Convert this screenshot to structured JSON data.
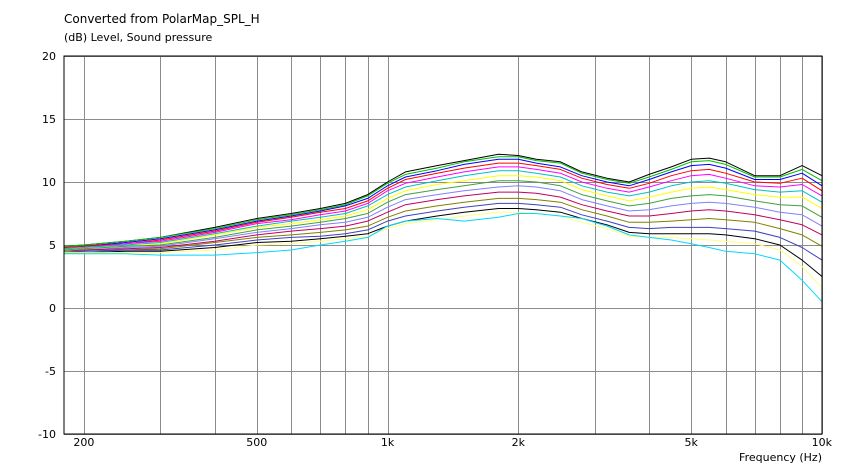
{
  "chart_data": {
    "type": "line",
    "title": "Converted from PolarMap_SPL_H",
    "subtitle": "(dB)  Level, Sound pressure",
    "xlabel": "Frequency  (Hz)",
    "ylabel": "",
    "xscale": "log",
    "xlim": [
      180,
      10000
    ],
    "ylim": [
      -10,
      20
    ],
    "grid": true,
    "y_ticks": [
      {
        "value": -10,
        "label": "-10"
      },
      {
        "value": -5,
        "label": "-5"
      },
      {
        "value": 0,
        "label": "0"
      },
      {
        "value": 5,
        "label": "5"
      },
      {
        "value": 10,
        "label": "10"
      },
      {
        "value": 15,
        "label": "15"
      },
      {
        "value": 20,
        "label": "20"
      }
    ],
    "x_ticks": [
      {
        "value": 200,
        "label": "200"
      },
      {
        "value": 500,
        "label": "500"
      },
      {
        "value": 1000,
        "label": "1k"
      },
      {
        "value": 2000,
        "label": "2k"
      },
      {
        "value": 5000,
        "label": "5k"
      },
      {
        "value": 10000,
        "label": "10k"
      }
    ],
    "x_gridlines": [
      200,
      300,
      400,
      500,
      600,
      700,
      800,
      900,
      1000,
      2000,
      3000,
      4000,
      5000,
      6000,
      7000,
      8000,
      9000,
      10000
    ],
    "x": [
      180,
      200,
      250,
      300,
      400,
      500,
      600,
      700,
      800,
      900,
      1000,
      1100,
      1300,
      1500,
      1800,
      2000,
      2200,
      2500,
      2800,
      3200,
      3600,
      4000,
      4500,
      5000,
      5500,
      6000,
      7000,
      8000,
      9000,
      10000
    ],
    "series": [
      {
        "color": "#000000",
        "values": [
          4.9,
          5.0,
          5.3,
          5.6,
          6.4,
          7.1,
          7.5,
          7.9,
          8.3,
          9.0,
          10.0,
          10.8,
          11.3,
          11.7,
          12.2,
          12.1,
          11.8,
          11.6,
          10.8,
          10.3,
          10.0,
          10.6,
          11.2,
          11.8,
          11.9,
          11.6,
          10.5,
          10.5,
          11.3,
          10.5
        ]
      },
      {
        "color": "#00c000",
        "values": [
          4.9,
          5.0,
          5.3,
          5.6,
          6.3,
          7.0,
          7.4,
          7.8,
          8.2,
          8.9,
          9.9,
          10.6,
          11.1,
          11.6,
          12.0,
          12.0,
          11.7,
          11.5,
          10.7,
          10.2,
          9.9,
          10.4,
          11.0,
          11.6,
          11.7,
          11.4,
          10.4,
          10.4,
          11.0,
          10.1
        ]
      },
      {
        "color": "#0000ff",
        "values": [
          4.8,
          4.9,
          5.2,
          5.5,
          6.2,
          6.9,
          7.3,
          7.7,
          8.1,
          8.7,
          9.7,
          10.4,
          10.9,
          11.4,
          11.8,
          11.8,
          11.5,
          11.2,
          10.5,
          10.0,
          9.7,
          10.2,
          10.8,
          11.3,
          11.4,
          11.1,
          10.2,
          10.2,
          10.7,
          9.7
        ]
      },
      {
        "color": "#ff0000",
        "values": [
          4.8,
          4.9,
          5.1,
          5.4,
          6.1,
          6.8,
          7.2,
          7.6,
          7.9,
          8.5,
          9.5,
          10.2,
          10.7,
          11.1,
          11.5,
          11.5,
          11.3,
          11.0,
          10.3,
          9.8,
          9.5,
          9.9,
          10.5,
          10.9,
          11.0,
          10.7,
          10.0,
          9.9,
          10.3,
          9.3
        ]
      },
      {
        "color": "#ff00ff",
        "values": [
          4.7,
          4.8,
          5.1,
          5.3,
          6.0,
          6.7,
          7.0,
          7.4,
          7.7,
          8.3,
          9.3,
          9.9,
          10.4,
          10.8,
          11.2,
          11.2,
          11.0,
          10.7,
          10.0,
          9.5,
          9.2,
          9.6,
          10.1,
          10.5,
          10.6,
          10.3,
          9.7,
          9.6,
          9.8,
          8.9
        ]
      },
      {
        "color": "#00c0c0",
        "values": [
          4.7,
          4.8,
          5.0,
          5.2,
          5.9,
          6.5,
          6.9,
          7.2,
          7.5,
          8.1,
          9.0,
          9.6,
          10.1,
          10.5,
          10.9,
          10.9,
          10.7,
          10.4,
          9.7,
          9.2,
          8.9,
          9.2,
          9.7,
          10.0,
          10.1,
          9.9,
          9.4,
          9.2,
          9.3,
          8.4
        ]
      },
      {
        "color": "#ffff00",
        "values": [
          4.6,
          4.7,
          4.9,
          5.1,
          5.8,
          6.4,
          6.7,
          7.0,
          7.3,
          7.8,
          8.7,
          9.3,
          9.8,
          10.1,
          10.5,
          10.5,
          10.4,
          10.1,
          9.4,
          8.9,
          8.5,
          8.8,
          9.2,
          9.5,
          9.6,
          9.4,
          9.0,
          8.8,
          8.8,
          7.9
        ]
      },
      {
        "color": "#40a040",
        "values": [
          4.6,
          4.7,
          4.9,
          5.0,
          5.6,
          6.2,
          6.5,
          6.8,
          7.1,
          7.5,
          8.4,
          9.0,
          9.4,
          9.7,
          10.1,
          10.1,
          10.0,
          9.7,
          9.0,
          8.5,
          8.1,
          8.3,
          8.7,
          8.9,
          9.0,
          8.9,
          8.5,
          8.2,
          8.1,
          7.2
        ]
      },
      {
        "color": "#8080ff",
        "values": [
          4.5,
          4.6,
          4.8,
          4.9,
          5.5,
          6.0,
          6.3,
          6.6,
          6.8,
          7.2,
          8.0,
          8.6,
          9.0,
          9.3,
          9.6,
          9.7,
          9.6,
          9.3,
          8.6,
          8.1,
          7.7,
          7.8,
          8.1,
          8.3,
          8.4,
          8.3,
          8.0,
          7.6,
          7.4,
          6.5
        ]
      },
      {
        "color": "#c00060",
        "values": [
          4.5,
          4.6,
          4.7,
          4.8,
          5.3,
          5.8,
          6.1,
          6.3,
          6.5,
          6.9,
          7.6,
          8.2,
          8.6,
          8.9,
          9.2,
          9.2,
          9.1,
          8.8,
          8.2,
          7.7,
          7.3,
          7.3,
          7.5,
          7.7,
          7.8,
          7.7,
          7.4,
          7.0,
          6.6,
          5.8
        ]
      },
      {
        "color": "#808000",
        "values": [
          4.5,
          4.5,
          4.6,
          4.7,
          5.2,
          5.6,
          5.8,
          6.0,
          6.2,
          6.5,
          7.2,
          7.7,
          8.1,
          8.4,
          8.7,
          8.7,
          8.6,
          8.4,
          7.8,
          7.3,
          6.8,
          6.8,
          6.9,
          7.0,
          7.1,
          7.0,
          6.8,
          6.3,
          5.8,
          4.9
        ]
      },
      {
        "color": "#4040c0",
        "values": [
          4.4,
          4.5,
          4.6,
          4.6,
          5.0,
          5.4,
          5.6,
          5.7,
          5.9,
          6.2,
          6.9,
          7.3,
          7.7,
          8.0,
          8.3,
          8.3,
          8.2,
          8.0,
          7.4,
          6.9,
          6.4,
          6.3,
          6.4,
          6.4,
          6.4,
          6.3,
          6.1,
          5.6,
          4.8,
          3.8
        ]
      },
      {
        "color": "#000000",
        "values": [
          4.4,
          4.4,
          4.5,
          4.5,
          4.8,
          5.2,
          5.3,
          5.5,
          5.7,
          5.9,
          6.5,
          6.9,
          7.3,
          7.6,
          7.9,
          7.9,
          7.8,
          7.6,
          7.1,
          6.6,
          6.0,
          5.9,
          5.9,
          5.9,
          5.9,
          5.8,
          5.5,
          5.0,
          3.8,
          2.5
        ]
      },
      {
        "color": "#ffff80",
        "values": [
          4.4,
          4.4,
          4.4,
          4.4,
          4.6,
          5.0,
          5.1,
          5.3,
          5.5,
          5.7,
          6.3,
          6.7,
          7.0,
          7.3,
          7.6,
          7.6,
          7.5,
          7.3,
          6.8,
          6.3,
          5.7,
          5.6,
          5.6,
          5.5,
          5.4,
          5.3,
          5.1,
          4.6,
          3.3,
          1.6
        ]
      },
      {
        "color": "#00d8ff",
        "values": [
          4.3,
          4.3,
          4.3,
          4.2,
          4.2,
          4.4,
          4.6,
          5.0,
          5.3,
          5.6,
          6.5,
          6.9,
          7.1,
          6.9,
          7.2,
          7.5,
          7.5,
          7.3,
          7.1,
          6.5,
          5.8,
          5.6,
          5.4,
          5.1,
          4.8,
          4.5,
          4.3,
          3.8,
          2.2,
          0.5
        ]
      }
    ]
  }
}
